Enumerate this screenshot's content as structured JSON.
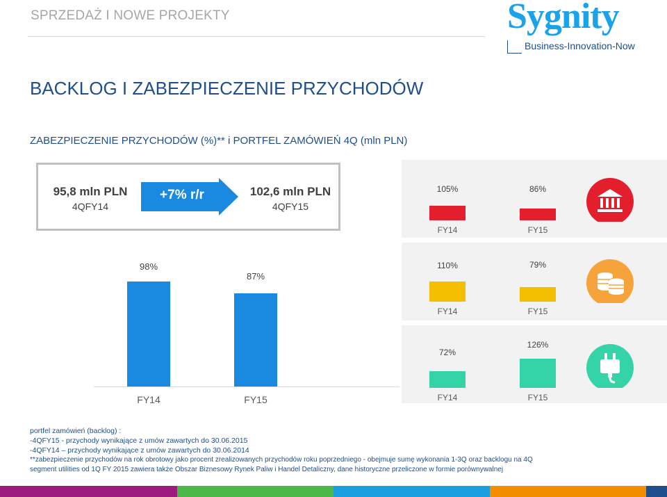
{
  "header": {
    "section_title": "SPRZEDAŻ I NOWE PROJEKTY"
  },
  "logo": {
    "wordmark": "Sygnity",
    "tagline": "Business-Innovation-Now"
  },
  "page_title": "BACKLOG I ZABEZPIECZENIE PRZYCHODÓW",
  "subtitle": "ZABEZPIECZENIE PRZYCHODÓW (%)** i PORTFEL ZAMÓWIEŃ 4Q  (mln PLN)",
  "summary": {
    "left_value": "95,8 mln PLN",
    "left_period": "4QFY14",
    "change": "+7% r/r",
    "right_value": "102,6 mln PLN",
    "right_period": "4QFY15"
  },
  "colors": {
    "blue": "#1a8ae0",
    "red": "#e31e2d",
    "yellow": "#f6be00",
    "teal": "#35d3a8",
    "orange": "#f6a33b",
    "title_blue": "#1f4e8c"
  },
  "icons": [
    "bank-icon",
    "coins-icon",
    "plug-icon"
  ],
  "chart_data": [
    {
      "type": "bar",
      "categories": [
        "FY14",
        "FY15"
      ],
      "values": [
        98,
        87
      ],
      "labels": [
        "98%",
        "87%"
      ],
      "color": "#1a8ae0"
    },
    {
      "type": "bar",
      "categories": [
        "FY14",
        "FY15"
      ],
      "values": [
        105,
        86
      ],
      "labels": [
        "105%",
        "86%"
      ],
      "color": "#e31e2d"
    },
    {
      "type": "bar",
      "categories": [
        "FY14",
        "FY15"
      ],
      "values": [
        110,
        79
      ],
      "labels": [
        "110%",
        "79%"
      ],
      "color": "#f6be00"
    },
    {
      "type": "bar",
      "categories": [
        "FY14",
        "FY15"
      ],
      "values": [
        72,
        126
      ],
      "labels": [
        "72%",
        "126%"
      ],
      "color": "#35d3a8"
    }
  ],
  "notes": [
    "portfel zamówień (backlog) :",
    "-4QFY15 - przychody  wynikające  z umów zawartych do 30.06.2015",
    "-4QFY14 –  przychody  wynikające  z umów zawartych do  30.06.2014",
    "**zabezpieczenie przychodów  na rok obrotowy jako procent zrealizowanych przychodów roku poprzedniego - obejmuje sumę wykonania 1-3Q oraz backlogu na 4Q",
    "segment utilities od 1Q FY 2015 zawiera także Obszar Biznesowy Rynek Paliw i Handel Detaliczny, dane historyczne przeliczone w formie porównywalnej"
  ],
  "bottom_bar_colors": [
    "#9e1b7e",
    "#4bb848",
    "#1a9fe0",
    "#f28c00",
    "#1f4e8c"
  ]
}
